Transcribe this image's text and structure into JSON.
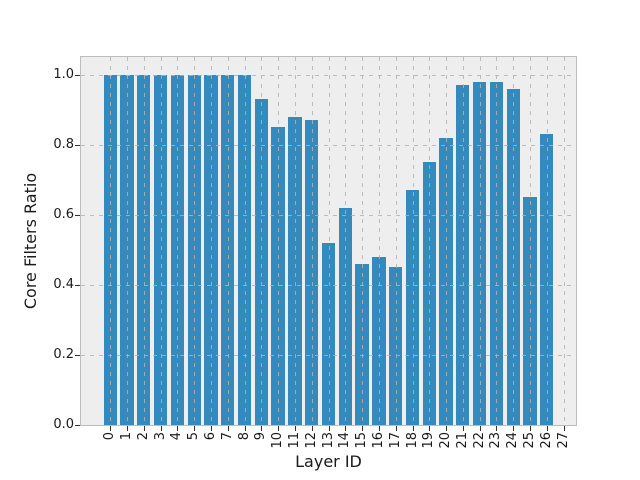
{
  "chart_data": {
    "type": "bar",
    "title": "",
    "xlabel": "Layer ID",
    "ylabel": "Core Filters Ratio",
    "categories": [
      "0",
      "1",
      "2",
      "3",
      "4",
      "5",
      "6",
      "7",
      "8",
      "9",
      "10",
      "11",
      "12",
      "13",
      "14",
      "15",
      "16",
      "17",
      "18",
      "19",
      "20",
      "21",
      "22",
      "23",
      "24",
      "25",
      "26",
      "27"
    ],
    "values": [
      1.0,
      1.0,
      1.0,
      1.0,
      1.0,
      1.0,
      1.0,
      1.0,
      1.0,
      0.93,
      0.85,
      0.88,
      0.87,
      0.52,
      0.62,
      0.46,
      0.48,
      0.45,
      0.67,
      0.75,
      0.82,
      0.97,
      0.98,
      0.98,
      0.96,
      0.65,
      0.83,
      0.0
    ],
    "ytick_values": [
      0.0,
      0.2,
      0.4,
      0.6,
      0.8,
      1.0
    ],
    "ytick_labels": [
      "0.0",
      "0.2",
      "0.4",
      "0.6",
      "0.8",
      "1.0"
    ],
    "ylim": [
      0,
      1.05
    ],
    "xlim": [
      -1.74,
      27.74
    ],
    "grid": true,
    "grid_style": "dashed",
    "legend": "none",
    "x_tick_label_rotation": 90,
    "colors": {
      "bar": "#348abd",
      "plot_background": "#eeeeee",
      "grid": "#b2b2b2",
      "spine": "#bcbcbc",
      "text": "#1a1a1a",
      "figure_background": "#ffffff"
    }
  }
}
